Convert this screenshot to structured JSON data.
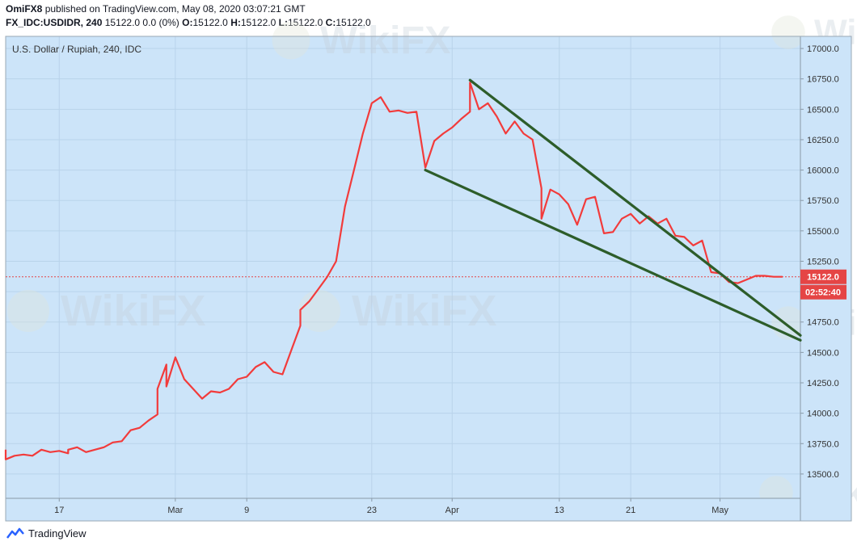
{
  "header": {
    "author": "OmiFX8",
    "published_text": "published on TradingView.com, May 08, 2020 03:07:21 GMT",
    "symbol": "FX_IDC:USDIDR, 240",
    "change": "15122.0 0.0 (0%)",
    "ohlc": {
      "O": "15122.0",
      "H": "15122.0",
      "L": "15122.0",
      "C": "15122.0"
    }
  },
  "chart_title": "U.S. Dollar / Rupiah, 240, IDC",
  "price_label": "15122.0",
  "countdown_label": "02:52:40",
  "footer_brand": "TradingView",
  "watermark_text": "WikiFX",
  "colors": {
    "background": "#cce4f9",
    "line": "#f23b3b",
    "trend": "#2d5d2a",
    "price_tag": "#e54545"
  },
  "chart_data": {
    "type": "line",
    "title": "U.S. Dollar / Rupiah, 240, IDC",
    "xlabel": "",
    "ylabel": "",
    "ylim": [
      13300,
      17100
    ],
    "y_ticks": [
      13500,
      13750,
      14000,
      14250,
      14500,
      14750,
      15000,
      15250,
      15500,
      15750,
      16000,
      16250,
      16500,
      16750,
      17000
    ],
    "y_tick_labels": [
      "13500.0",
      "13750.0",
      "14000.0",
      "14250.0",
      "14500.0",
      "14750.0",
      "15000.0",
      "15250.0",
      "15500.0",
      "15750.0",
      "16000.0",
      "16250.0",
      "16500.0",
      "16750.0",
      "17000.0"
    ],
    "x_tick_labels": [
      "17",
      "Mar",
      "9",
      "23",
      "Apr",
      "13",
      "21",
      "May"
    ],
    "x_tick_dates": [
      "2020-02-17",
      "2020-03-01",
      "2020-03-09",
      "2020-03-23",
      "2020-04-01",
      "2020-04-13",
      "2020-04-21",
      "2020-05-01"
    ],
    "xlim": [
      "2020-02-11",
      "2020-05-10"
    ],
    "grid": true,
    "current_price": 15122.0,
    "series": [
      {
        "values": [
          [
            "2020-02-11",
            13700
          ],
          [
            "2020-02-11",
            13620
          ],
          [
            "2020-02-12",
            13650
          ],
          [
            "2020-02-13",
            13660
          ],
          [
            "2020-02-14",
            13650
          ],
          [
            "2020-02-15",
            13700
          ],
          [
            "2020-02-16",
            13680
          ],
          [
            "2020-02-17",
            13690
          ],
          [
            "2020-02-18",
            13670
          ],
          [
            "2020-02-18",
            13700
          ],
          [
            "2020-02-19",
            13720
          ],
          [
            "2020-02-20",
            13680
          ],
          [
            "2020-02-21",
            13700
          ],
          [
            "2020-02-22",
            13720
          ],
          [
            "2020-02-23",
            13760
          ],
          [
            "2020-02-24",
            13770
          ],
          [
            "2020-02-25",
            13860
          ],
          [
            "2020-02-26",
            13880
          ],
          [
            "2020-02-27",
            13940
          ],
          [
            "2020-02-28",
            13990
          ],
          [
            "2020-02-28",
            14200
          ],
          [
            "2020-02-29",
            14400
          ],
          [
            "2020-02-29",
            14220
          ],
          [
            "2020-03-01",
            14460
          ],
          [
            "2020-03-02",
            14280
          ],
          [
            "2020-03-03",
            14200
          ],
          [
            "2020-03-04",
            14120
          ],
          [
            "2020-03-05",
            14180
          ],
          [
            "2020-03-06",
            14170
          ],
          [
            "2020-03-07",
            14200
          ],
          [
            "2020-03-08",
            14280
          ],
          [
            "2020-03-09",
            14300
          ],
          [
            "2020-03-10",
            14380
          ],
          [
            "2020-03-11",
            14420
          ],
          [
            "2020-03-12",
            14340
          ],
          [
            "2020-03-13",
            14320
          ],
          [
            "2020-03-14",
            14520
          ],
          [
            "2020-03-15",
            14720
          ],
          [
            "2020-03-15",
            14850
          ],
          [
            "2020-03-16",
            14920
          ],
          [
            "2020-03-17",
            15020
          ],
          [
            "2020-03-18",
            15120
          ],
          [
            "2020-03-19",
            15250
          ],
          [
            "2020-03-20",
            15700
          ],
          [
            "2020-03-21",
            16000
          ],
          [
            "2020-03-22",
            16300
          ],
          [
            "2020-03-23",
            16550
          ],
          [
            "2020-03-24",
            16600
          ],
          [
            "2020-03-25",
            16480
          ],
          [
            "2020-03-26",
            16490
          ],
          [
            "2020-03-27",
            16470
          ],
          [
            "2020-03-28",
            16480
          ],
          [
            "2020-03-29",
            16020
          ],
          [
            "2020-03-30",
            16240
          ],
          [
            "2020-03-31",
            16300
          ],
          [
            "2020-04-01",
            16350
          ],
          [
            "2020-04-02",
            16420
          ],
          [
            "2020-04-03",
            16480
          ],
          [
            "2020-04-03",
            16720
          ],
          [
            "2020-04-04",
            16500
          ],
          [
            "2020-04-05",
            16550
          ],
          [
            "2020-04-06",
            16440
          ],
          [
            "2020-04-07",
            16300
          ],
          [
            "2020-04-08",
            16400
          ],
          [
            "2020-04-09",
            16300
          ],
          [
            "2020-04-10",
            16250
          ],
          [
            "2020-04-11",
            15850
          ],
          [
            "2020-04-11",
            15600
          ],
          [
            "2020-04-12",
            15840
          ],
          [
            "2020-04-13",
            15800
          ],
          [
            "2020-04-14",
            15720
          ],
          [
            "2020-04-15",
            15550
          ],
          [
            "2020-04-16",
            15760
          ],
          [
            "2020-04-17",
            15780
          ],
          [
            "2020-04-18",
            15480
          ],
          [
            "2020-04-19",
            15490
          ],
          [
            "2020-04-20",
            15600
          ],
          [
            "2020-04-21",
            15640
          ],
          [
            "2020-04-22",
            15560
          ],
          [
            "2020-04-23",
            15620
          ],
          [
            "2020-04-24",
            15560
          ],
          [
            "2020-04-25",
            15600
          ],
          [
            "2020-04-26",
            15460
          ],
          [
            "2020-04-27",
            15450
          ],
          [
            "2020-04-28",
            15380
          ],
          [
            "2020-04-29",
            15420
          ],
          [
            "2020-04-30",
            15160
          ],
          [
            "2020-05-01",
            15150
          ],
          [
            "2020-05-02",
            15080
          ],
          [
            "2020-05-03",
            15070
          ],
          [
            "2020-05-04",
            15100
          ],
          [
            "2020-05-05",
            15130
          ],
          [
            "2020-05-06",
            15130
          ],
          [
            "2020-05-07",
            15122
          ],
          [
            "2020-05-08",
            15122
          ]
        ]
      }
    ],
    "trendlines": [
      {
        "from": [
          "2020-04-03",
          16740
        ],
        "to": [
          "2020-05-10",
          14640
        ]
      },
      {
        "from": [
          "2020-03-29",
          16000
        ],
        "to": [
          "2020-05-10",
          14600
        ]
      }
    ]
  }
}
